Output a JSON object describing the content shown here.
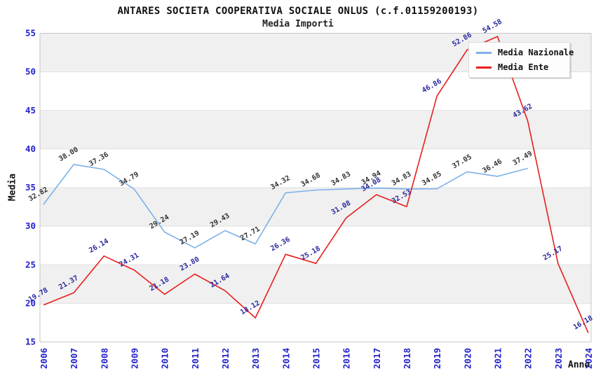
{
  "chart_data": {
    "type": "line",
    "title": "ANTARES SOCIETA COOPERATIVA SOCIALE ONLUS (c.f.01159200193)",
    "subtitle": "Media Importi",
    "xlabel": "Anno",
    "ylabel": "Media",
    "x": [
      "2006",
      "2007",
      "2008",
      "2009",
      "2010",
      "2011",
      "2012",
      "2013",
      "2014",
      "2015",
      "2016",
      "2017",
      "2018",
      "2019",
      "2020",
      "2021",
      "2022",
      "2023",
      "2024"
    ],
    "ylim": [
      15,
      55
    ],
    "yticks": [
      "15",
      "20",
      "25",
      "30",
      "35",
      "40",
      "45",
      "50",
      "55"
    ],
    "grid": "horizontal-bands",
    "band_color_odd": "#f0f0f0",
    "band_color_even": "#ffffff",
    "gridline_color": "#e0e0e0",
    "plot_border_color": "#c6c6c6",
    "axis_tick_color": "#2222cc",
    "legend_position": "top-right",
    "series": [
      {
        "name": "Media Nazionale",
        "color": "#7cb0e8",
        "label_color": "#333333",
        "values": [
          "32.82",
          "38.00",
          "37.36",
          "34.79",
          "29.24",
          "27.19",
          "29.43",
          "27.71",
          "34.32",
          "34.68",
          "34.83",
          "34.94",
          "34.83",
          "34.85",
          "37.05",
          "36.46",
          "37.49",
          null,
          null
        ]
      },
      {
        "name": "Media Ente",
        "color": "#e81e1e",
        "label_color": "#28289e",
        "values": [
          "19.78",
          "21.37",
          "26.14",
          "24.31",
          "21.18",
          "23.80",
          "21.64",
          "18.12",
          "26.36",
          "25.18",
          "31.08",
          "34.08",
          "32.53",
          "46.86",
          "52.86",
          "54.58",
          "43.62",
          "25.17",
          "16.18"
        ]
      }
    ]
  }
}
